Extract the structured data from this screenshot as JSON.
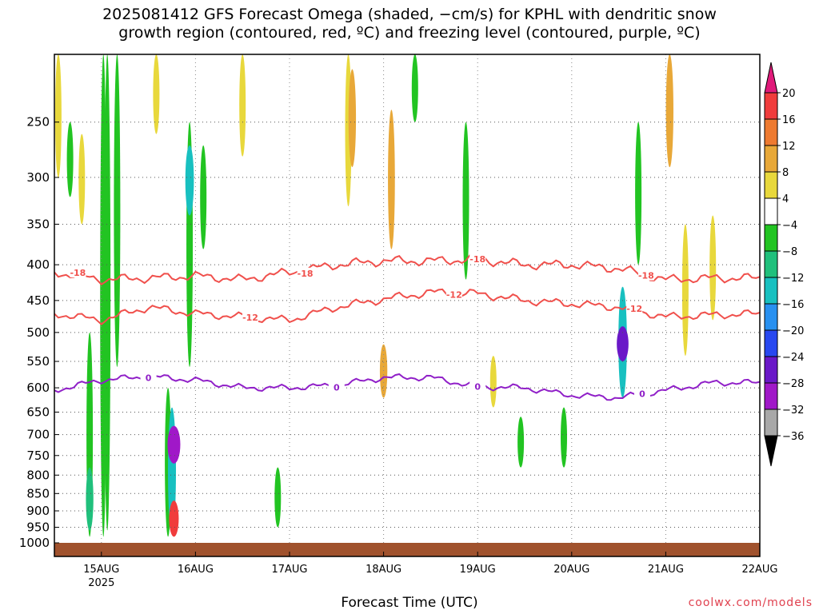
{
  "title_line1": "2025081412 GFS Forecast Omega (shaded, −cm/s) for KPHL with dendritic snow",
  "title_line2": "growth region (contoured, red, ºC) and freezing level (contoured, purple, ºC)",
  "xlabel": "Forecast Time (UTC)",
  "credit": "coolwx.com/models",
  "chart_data": {
    "type": "time-height cross section",
    "x_ticks": [
      {
        "label": "15AUG",
        "sub": "2025",
        "hours": 12
      },
      {
        "label": "16AUG",
        "sub": "",
        "hours": 36
      },
      {
        "label": "17AUG",
        "sub": "",
        "hours": 60
      },
      {
        "label": "18AUG",
        "sub": "",
        "hours": 84
      },
      {
        "label": "19AUG",
        "sub": "",
        "hours": 108
      },
      {
        "label": "20AUG",
        "sub": "",
        "hours": 132
      },
      {
        "label": "21AUG",
        "sub": "",
        "hours": 156
      },
      {
        "label": "22AUG",
        "sub": "",
        "hours": 180
      }
    ],
    "xlim_hours": [
      0,
      180
    ],
    "y_levels_hpa": [
      250,
      300,
      350,
      400,
      450,
      500,
      550,
      600,
      650,
      700,
      750,
      800,
      850,
      900,
      950,
      1000
    ],
    "ylim_hpa": [
      200,
      1000
    ],
    "y_scale": "log",
    "grid": true,
    "colorbar": {
      "labels": [
        "20",
        "16",
        "12",
        "8",
        "4",
        "−4",
        "−8",
        "−12",
        "−16",
        "−20",
        "−24",
        "−28",
        "−32",
        "−36"
      ],
      "colors": [
        "#f0386e",
        "#f03c3c",
        "#ee7a30",
        "#e8a838",
        "#e8d83c",
        "#ffffff",
        "#22c422",
        "#20c07c",
        "#18c0c0",
        "#2890f0",
        "#2848f0",
        "#6a18c8",
        "#a018c8",
        "#a8a8a8"
      ],
      "top_color": "#e01a7a",
      "bottom_color": "#000000"
    },
    "omega_shaded_blobs": [
      {
        "hours": 1,
        "p_top": 200,
        "p_bot": 300,
        "value": 5
      },
      {
        "hours": 4,
        "p_top": 250,
        "p_bot": 320,
        "value": -6
      },
      {
        "hours": 7,
        "p_top": 260,
        "p_bot": 350,
        "value": 5
      },
      {
        "hours": 9,
        "p_top": 500,
        "p_bot": 980,
        "value": -6
      },
      {
        "hours": 9,
        "p_top": 780,
        "p_bot": 960,
        "value": -10
      },
      {
        "hours": 12.5,
        "p_top": 200,
        "p_bot": 980,
        "value": -6
      },
      {
        "hours": 13.5,
        "p_top": 200,
        "p_bot": 960,
        "value": -6
      },
      {
        "hours": 16,
        "p_top": 200,
        "p_bot": 560,
        "value": -6
      },
      {
        "hours": 26,
        "p_top": 200,
        "p_bot": 260,
        "value": 5
      },
      {
        "hours": 29,
        "p_top": 600,
        "p_bot": 980,
        "value": -6
      },
      {
        "hours": 30,
        "p_top": 640,
        "p_bot": 970,
        "value": -12
      },
      {
        "hours": 30.5,
        "p_top": 680,
        "p_bot": 770,
        "value": -30
      },
      {
        "hours": 30.5,
        "p_top": 870,
        "p_bot": 980,
        "value": 18
      },
      {
        "hours": 34.5,
        "p_top": 250,
        "p_bot": 560,
        "value": -6
      },
      {
        "hours": 34.5,
        "p_top": 270,
        "p_bot": 340,
        "value": -14
      },
      {
        "hours": 38,
        "p_top": 270,
        "p_bot": 380,
        "value": -6
      },
      {
        "hours": 48,
        "p_top": 200,
        "p_bot": 280,
        "value": 5
      },
      {
        "hours": 57,
        "p_top": 780,
        "p_bot": 950,
        "value": -6
      },
      {
        "hours": 75,
        "p_top": 200,
        "p_bot": 330,
        "value": 5
      },
      {
        "hours": 76,
        "p_top": 210,
        "p_bot": 290,
        "value": 10
      },
      {
        "hours": 84,
        "p_top": 520,
        "p_bot": 620,
        "value": 10
      },
      {
        "hours": 86,
        "p_top": 240,
        "p_bot": 380,
        "value": 8
      },
      {
        "hours": 92,
        "p_top": 200,
        "p_bot": 250,
        "value": -6
      },
      {
        "hours": 105,
        "p_top": 250,
        "p_bot": 420,
        "value": -6
      },
      {
        "hours": 112,
        "p_top": 540,
        "p_bot": 640,
        "value": 5
      },
      {
        "hours": 119,
        "p_top": 660,
        "p_bot": 780,
        "value": -6
      },
      {
        "hours": 130,
        "p_top": 640,
        "p_bot": 780,
        "value": -6
      },
      {
        "hours": 145,
        "p_top": 430,
        "p_bot": 620,
        "value": -14
      },
      {
        "hours": 145,
        "p_top": 490,
        "p_bot": 550,
        "value": -26
      },
      {
        "hours": 149,
        "p_top": 250,
        "p_bot": 400,
        "value": -6
      },
      {
        "hours": 157,
        "p_top": 200,
        "p_bot": 290,
        "value": 10
      },
      {
        "hours": 161,
        "p_top": 350,
        "p_bot": 540,
        "value": 5
      },
      {
        "hours": 168,
        "p_top": 340,
        "p_bot": 480,
        "value": 5
      }
    ],
    "contours": [
      {
        "label": "-18",
        "color": "#f0504c",
        "x_hours": [
          0,
          12,
          24,
          36,
          48,
          60,
          72,
          84,
          96,
          108,
          120,
          132,
          144,
          156,
          168,
          180
        ],
        "p_hpa": [
          410,
          420,
          418,
          415,
          420,
          410,
          400,
          395,
          395,
          393,
          400,
          400,
          405,
          420,
          418,
          418
        ]
      },
      {
        "label": "-12",
        "color": "#f0504c",
        "x_hours": [
          0,
          12,
          24,
          36,
          48,
          60,
          72,
          84,
          96,
          108,
          120,
          132,
          144,
          156,
          168,
          180
        ],
        "p_hpa": [
          470,
          480,
          460,
          470,
          475,
          480,
          460,
          448,
          438,
          440,
          450,
          455,
          460,
          475,
          472,
          470
        ]
      },
      {
        "label": "0",
        "color": "#9020c8",
        "x_hours": [
          0,
          12,
          24,
          36,
          48,
          60,
          72,
          84,
          96,
          108,
          120,
          132,
          144,
          156,
          168,
          180
        ],
        "p_hpa": [
          605,
          585,
          578,
          585,
          600,
          600,
          595,
          580,
          580,
          598,
          600,
          615,
          620,
          605,
          590,
          590
        ]
      }
    ]
  }
}
